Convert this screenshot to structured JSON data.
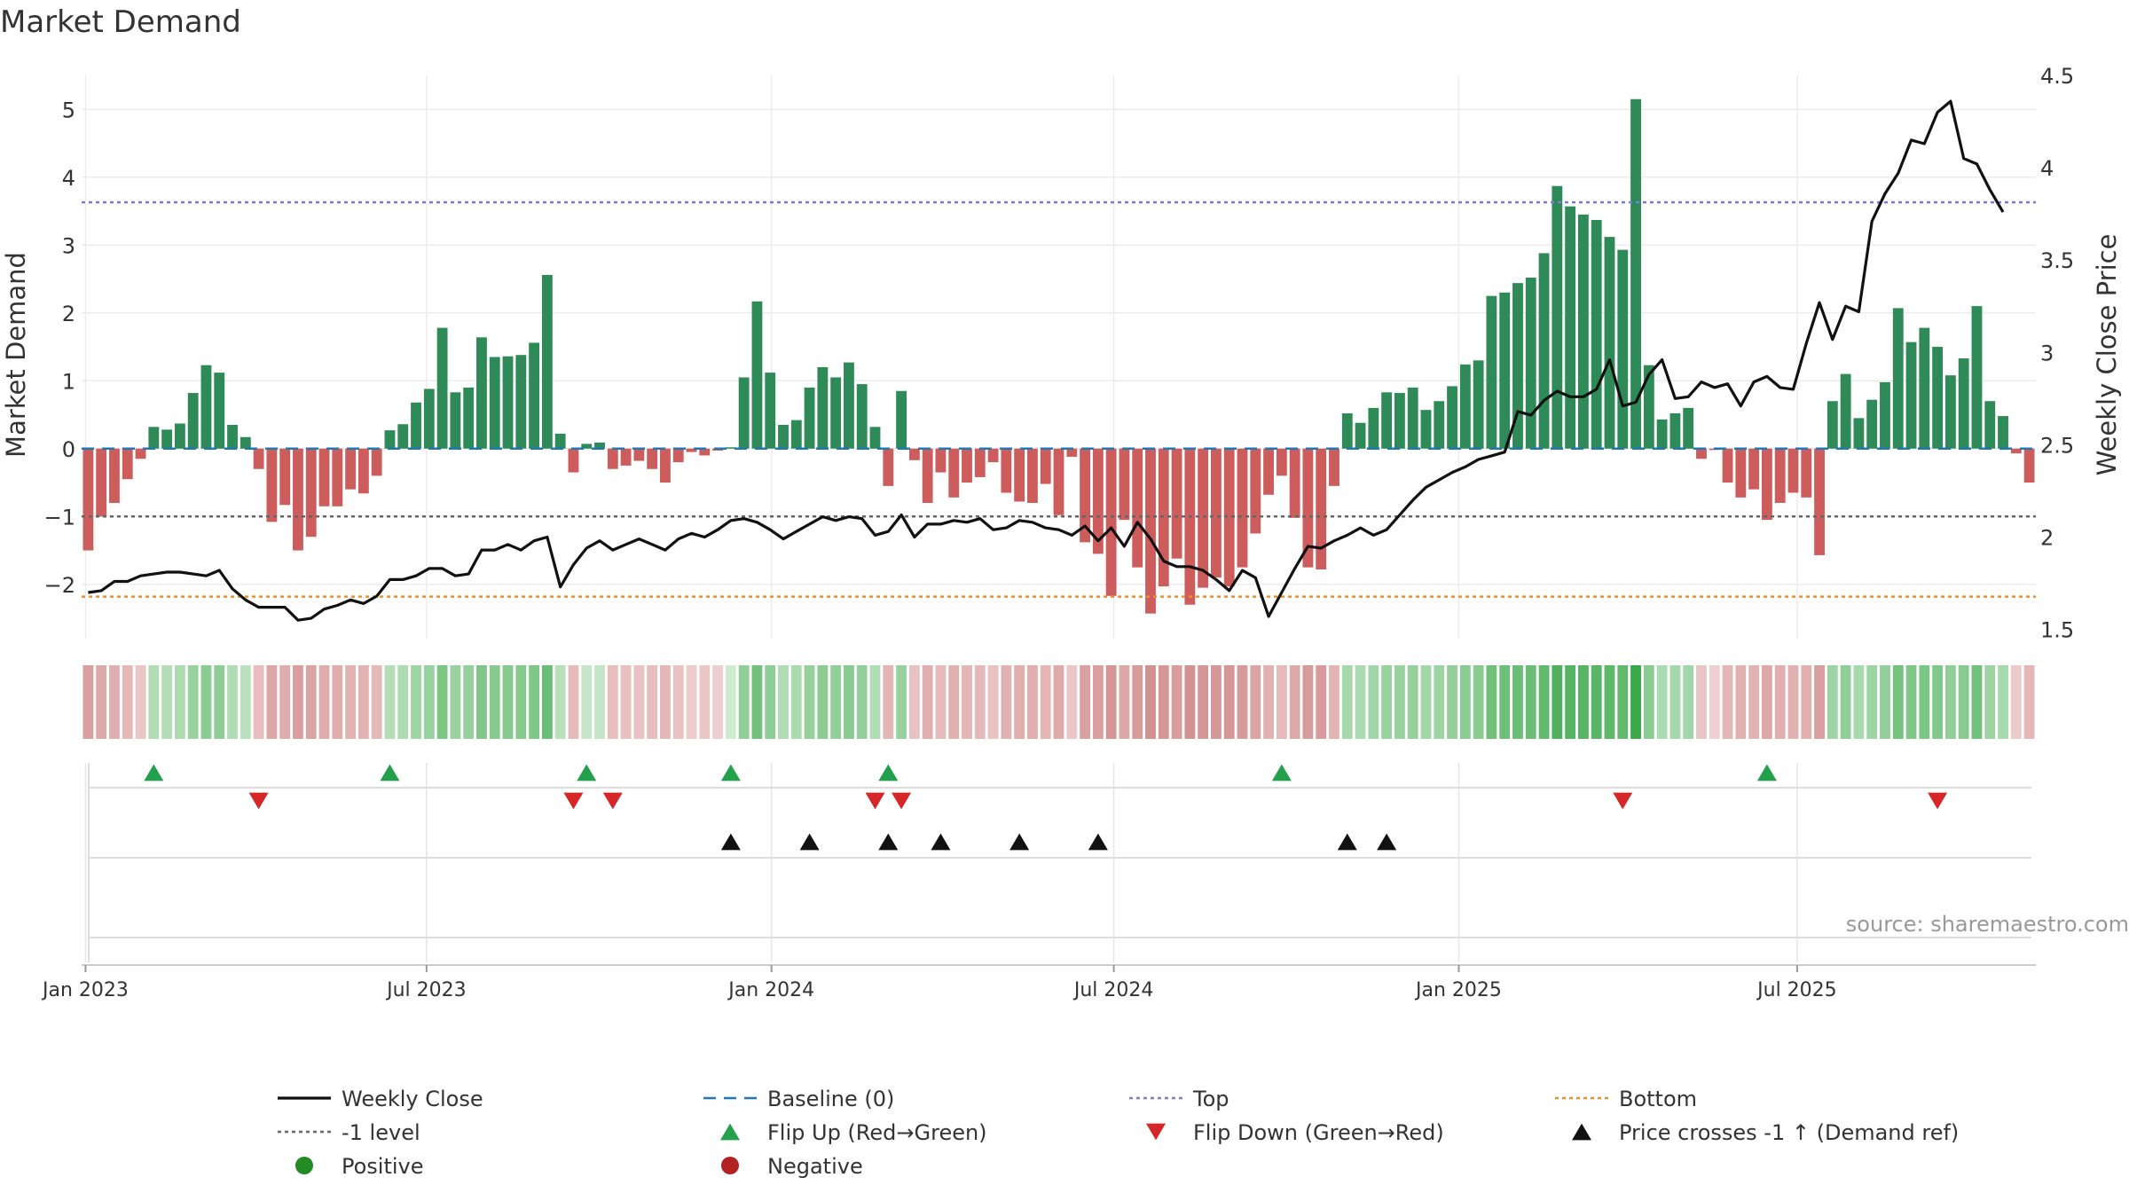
{
  "chart_data": {
    "type": "bar",
    "title": "Market Demand",
    "source": "source: sharemaestro.com",
    "ylabel_left": "Market Demand",
    "ylabel_right": "Weekly Close Price",
    "ylim_left": [
      -2.8,
      5.5
    ],
    "ylim_right": [
      1.45,
      4.5
    ],
    "yticks_left": [
      "5",
      "4",
      "3",
      "2",
      "1",
      "0",
      "−1",
      "−2"
    ],
    "yticks_left_values": [
      5,
      4,
      3,
      2,
      1,
      0,
      -1,
      -2
    ],
    "yticks_right": [
      "4.5",
      "4",
      "3.5",
      "3",
      "2.5",
      "2",
      "1.5"
    ],
    "yticks_right_values": [
      4.5,
      4,
      3.5,
      3,
      2.5,
      2,
      1.5
    ],
    "xticks": [
      "Jan 2023",
      "Jul 2023",
      "Jan 2024",
      "Jul 2024",
      "Jan 2025",
      "Jul 2025"
    ],
    "xticks_week_index": [
      0.3,
      26.3,
      52.6,
      78.7,
      105,
      130.8
    ],
    "reference_lines": {
      "top": 3.63,
      "minus_one": -1,
      "bottom": -2.18,
      "baseline": 0
    },
    "colors": {
      "positive": "#2e8b57",
      "negative": "#cd5c5c",
      "price": "#111111",
      "top": "#7b7bd6",
      "bottom": "#e8922e",
      "minus_one": "#666666",
      "baseline": "#1f77b4",
      "flip_up": "#22a04b",
      "flip_down": "#d62728",
      "cross": "#111111",
      "legend_positive": "#238b23",
      "legend_negative": "#b22222"
    },
    "demand": [
      -1.5,
      -1.0,
      -0.8,
      -0.45,
      -0.15,
      0.32,
      0.28,
      0.37,
      0.82,
      1.23,
      1.12,
      0.35,
      0.17,
      -0.3,
      -1.08,
      -0.83,
      -1.5,
      -1.3,
      -0.85,
      -0.85,
      -0.6,
      -0.66,
      -0.4,
      0.27,
      0.36,
      0.68,
      0.88,
      1.78,
      0.83,
      0.9,
      1.64,
      1.35,
      1.36,
      1.38,
      1.56,
      2.56,
      0.22,
      -0.35,
      0.07,
      0.09,
      -0.3,
      -0.25,
      -0.18,
      -0.3,
      -0.5,
      -0.2,
      -0.05,
      -0.1,
      -0.03,
      0.02,
      1.05,
      2.17,
      1.12,
      0.35,
      0.42,
      0.9,
      1.2,
      1.05,
      1.27,
      0.95,
      0.32,
      -0.55,
      0.85,
      -0.17,
      -0.8,
      -0.35,
      -0.72,
      -0.5,
      -0.42,
      -0.2,
      -0.65,
      -0.78,
      -0.8,
      -0.52,
      -0.98,
      -0.12,
      -1.38,
      -1.55,
      -2.17,
      -1.05,
      -1.75,
      -2.43,
      -2.03,
      -1.62,
      -2.3,
      -2.05,
      -1.9,
      -2.03,
      -1.75,
      -1.25,
      -0.68,
      -0.4,
      -1.02,
      -1.75,
      -1.78,
      -0.55,
      0.52,
      0.38,
      0.6,
      0.83,
      0.82,
      0.9,
      0.57,
      0.7,
      0.92,
      1.24,
      1.3,
      2.25,
      2.3,
      2.44,
      2.52,
      2.88,
      3.87,
      3.57,
      3.45,
      3.37,
      3.12,
      2.93,
      5.15,
      1.23,
      0.43,
      0.52,
      0.6,
      -0.15,
      -0.02,
      -0.5,
      -0.72,
      -0.6,
      -1.05,
      -0.8,
      -0.65,
      -0.72,
      -1.57,
      0.7,
      1.1,
      0.45,
      0.72,
      0.98,
      2.07,
      1.57,
      1.78,
      1.5,
      1.08,
      1.33,
      2.1,
      0.7,
      0.48,
      -0.07,
      -0.5
    ],
    "price": [
      1.7,
      1.71,
      1.76,
      1.76,
      1.79,
      1.8,
      1.81,
      1.81,
      1.8,
      1.79,
      1.82,
      1.72,
      1.66,
      1.62,
      1.62,
      1.62,
      1.55,
      1.56,
      1.61,
      1.63,
      1.66,
      1.64,
      1.68,
      1.77,
      1.77,
      1.79,
      1.83,
      1.83,
      1.79,
      1.8,
      1.93,
      1.93,
      1.96,
      1.93,
      1.98,
      2.0,
      1.73,
      1.85,
      1.94,
      1.98,
      1.93,
      1.96,
      1.99,
      1.96,
      1.93,
      1.99,
      2.02,
      2.0,
      2.04,
      2.09,
      2.1,
      2.08,
      2.04,
      1.99,
      2.03,
      2.07,
      2.11,
      2.09,
      2.11,
      2.1,
      2.01,
      2.03,
      2.12,
      2.0,
      2.07,
      2.07,
      2.09,
      2.08,
      2.1,
      2.04,
      2.05,
      2.09,
      2.08,
      2.05,
      2.04,
      2.01,
      2.06,
      1.98,
      2.05,
      1.95,
      2.08,
      1.99,
      1.87,
      1.84,
      1.84,
      1.82,
      1.77,
      1.71,
      1.82,
      1.78,
      1.57,
      1.7,
      1.83,
      1.95,
      1.94,
      1.98,
      2.01,
      2.05,
      2.01,
      2.04,
      2.12,
      2.2,
      2.27,
      2.31,
      2.35,
      2.38,
      2.42,
      2.44,
      2.46,
      2.68,
      2.66,
      2.74,
      2.79,
      2.76,
      2.76,
      2.8,
      2.96,
      2.71,
      2.73,
      2.88,
      2.96,
      2.75,
      2.76,
      2.84,
      2.81,
      2.83,
      2.71,
      2.84,
      2.87,
      2.81,
      2.8,
      3.05,
      3.27,
      3.07,
      3.25,
      3.22,
      3.71,
      3.86,
      3.97,
      4.15,
      4.13,
      4.3,
      4.36,
      4.05,
      4.02,
      3.88,
      3.76
    ],
    "flip_up_weeks": [
      5,
      23,
      38,
      49,
      61,
      91,
      128
    ],
    "flip_down_weeks": [
      13,
      37,
      40,
      60,
      62,
      117,
      141
    ],
    "price_cross_weeks": [
      49,
      55,
      61,
      65,
      71,
      77,
      96,
      99
    ],
    "legend": [
      {
        "label": "Weekly Close",
        "marker": "line",
        "color": "#111111"
      },
      {
        "label": "Baseline (0)",
        "marker": "dash",
        "color": "#1f77b4"
      },
      {
        "label": "Top",
        "marker": "dot",
        "color": "#7b7bd6"
      },
      {
        "label": "Bottom",
        "marker": "dot",
        "color": "#e8922e"
      },
      {
        "label": "-1 level",
        "marker": "dot",
        "color": "#666666"
      },
      {
        "label": "Flip Up (Red→Green)",
        "marker": "tri-up",
        "color": "#22a04b"
      },
      {
        "label": "Flip Down (Green→Red)",
        "marker": "tri-down",
        "color": "#d62728"
      },
      {
        "label": "Price crosses -1 ↑ (Demand ref)",
        "marker": "tri-up",
        "color": "#111111"
      },
      {
        "label": "Positive",
        "marker": "circle",
        "color": "#238b23"
      },
      {
        "label": "Negative",
        "marker": "circle",
        "color": "#b22222"
      }
    ]
  }
}
